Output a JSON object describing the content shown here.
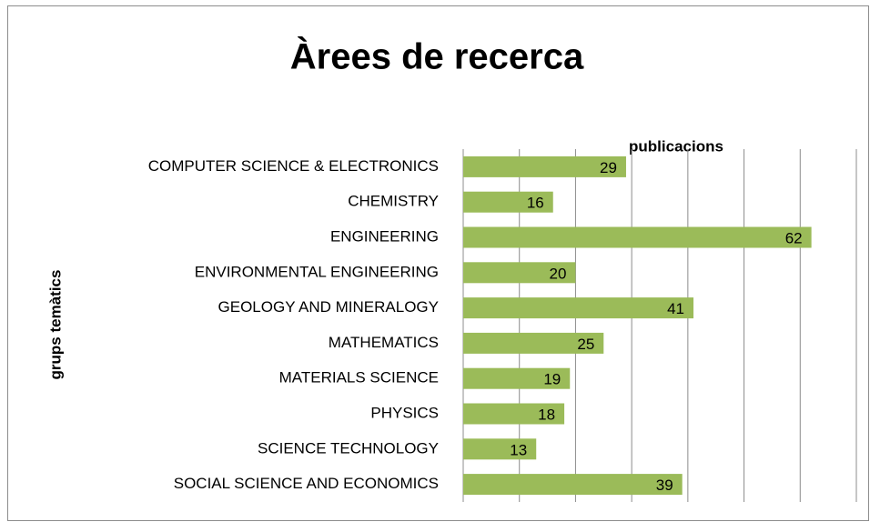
{
  "chart_data": {
    "type": "bar",
    "orientation": "horizontal",
    "title": "Àrees de recerca",
    "x_label": "publicacions",
    "y_label": "grups temàtics",
    "categories": [
      "COMPUTER SCIENCE & ELECTRONICS",
      "CHEMISTRY",
      "ENGINEERING",
      "ENVIRONMENTAL ENGINEERING",
      "GEOLOGY AND MINERALOGY",
      "MATHEMATICS",
      "MATERIALS SCIENCE",
      "PHYSICS",
      "SCIENCE TECHNOLOGY",
      "SOCIAL SCIENCE AND ECONOMICS"
    ],
    "values": [
      29,
      16,
      62,
      20,
      41,
      25,
      19,
      18,
      13,
      39
    ],
    "color": "#9bbb59",
    "xlim": [
      0,
      70
    ],
    "xticks": [
      0,
      10,
      20,
      30,
      40,
      50,
      60,
      70
    ],
    "grid": true
  }
}
